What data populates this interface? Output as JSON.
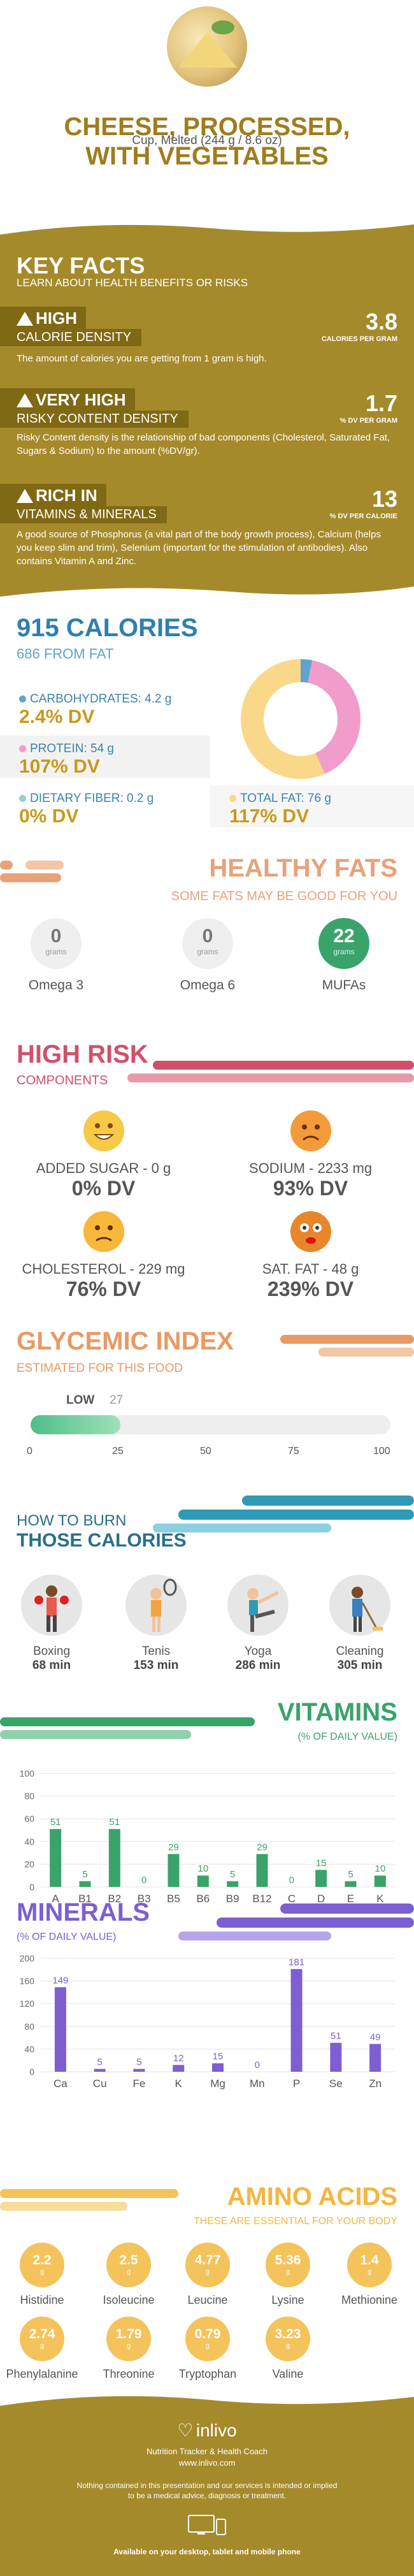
{
  "header": {
    "title_line1": "CHEESE, PROCESSED,",
    "title_line2": "WITH VEGETABLES",
    "serving": "Cup, Melted (244 g / 8.6 oz)"
  },
  "key_facts": {
    "title": "KEY FACTS",
    "subtitle": "LEARN ABOUT HEALTH BENEFITS OR RISKS",
    "calorie_density": {
      "level": "HIGH",
      "label": "CALORIE DENSITY",
      "value": "3.8",
      "unit": "CALORIES PER GRAM",
      "desc": "The amount of calories you are getting from 1 gram is high."
    },
    "risky_density": {
      "level": "VERY HIGH",
      "label": "RISKY CONTENT DENSITY",
      "value": "1.7",
      "unit": "% DV PER GRAM",
      "desc": "Risky Content density is the relationship of bad components (Cholesterol, Saturated Fat, Sugars & Sodium) to the amount (%DV/gr)."
    },
    "rich_in": {
      "level": "RICH IN",
      "label": "VITAMINS & MINERALS",
      "value": "13",
      "unit": "% DV PER CALORIE",
      "desc": "A good source of Phosphorus (a vital part of the body growth process), Calcium (helps you keep slim and trim), Selenium (important for the stimulation of antibodies). Also contains Vitamin A and Zinc."
    }
  },
  "calories": {
    "title": "915 CALORIES",
    "subtitle": "686 FROM FAT",
    "macros": [
      {
        "label": "CARBOHYDRATES: 4.2 g",
        "dv": "2.4% DV",
        "color": "#5ea4cd"
      },
      {
        "label": "PROTEIN: 54 g",
        "dv": "107% DV",
        "color": "#f29ccb"
      },
      {
        "label": "DIETARY FIBER: 0.2 g",
        "dv": "0% DV",
        "color": "#8fd3c6"
      },
      {
        "label": "TOTAL FAT: 76 g",
        "dv": "117% DV",
        "color": "#f9d88a"
      }
    ],
    "donut": [
      {
        "name": "Carbohydrates",
        "value": 4.2,
        "color": "#5ea4cd"
      },
      {
        "name": "Protein",
        "value": 54,
        "color": "#f29ccb"
      },
      {
        "name": "Fat",
        "value": 76,
        "color": "#f9d88a"
      }
    ]
  },
  "healthy_fats": {
    "title": "HEALTHY FATS",
    "subtitle": "SOME FATS MAY BE GOOD FOR YOU",
    "items": [
      {
        "name": "Omega 3",
        "value": "0",
        "unit": "grams"
      },
      {
        "name": "Omega 6",
        "value": "0",
        "unit": "grams"
      },
      {
        "name": "MUFAs",
        "value": "22",
        "unit": "grams"
      }
    ]
  },
  "high_risk": {
    "title": "HIGH RISK",
    "subtitle": "COMPONENTS",
    "items": [
      {
        "label": "ADDED SUGAR - 0 g",
        "dv": "0% DV",
        "face": "happy"
      },
      {
        "label": "SODIUM - 2233 mg",
        "dv": "93% DV",
        "face": "sad"
      },
      {
        "label": "CHOLESTEROL - 229 mg",
        "dv": "76% DV",
        "face": "sad"
      },
      {
        "label": "SAT. FAT - 48 g",
        "dv": "239% DV",
        "face": "dizzy"
      }
    ]
  },
  "glycemic": {
    "title": "GLYCEMIC INDEX",
    "subtitle": "ESTIMATED FOR THIS FOOD",
    "level": "LOW",
    "value": "27",
    "ticks": [
      "0",
      "25",
      "50",
      "75",
      "100"
    ],
    "fraction": 0.25
  },
  "burn": {
    "title_line1": "HOW TO BURN",
    "title_line2": "THOSE CALORIES",
    "items": [
      {
        "name": "Boxing",
        "minutes": "68 min"
      },
      {
        "name": "Tenis",
        "minutes": "153 min"
      },
      {
        "name": "Yoga",
        "minutes": "286 min"
      },
      {
        "name": "Cleaning",
        "minutes": "305 min"
      }
    ]
  },
  "vitamins_heading": {
    "title": "VITAMINS",
    "subtitle": "(% OF DAILY VALUE)"
  },
  "minerals_heading": {
    "title": "MINERALS",
    "subtitle": "(% OF DAILY VALUE)"
  },
  "chart_data": [
    {
      "type": "bar",
      "title": "VITAMINS",
      "ylabel": "(% OF DAILY VALUE)",
      "categories": [
        "A",
        "B1",
        "B2",
        "B3",
        "B5",
        "B6",
        "B9",
        "B12",
        "C",
        "D",
        "E",
        "K"
      ],
      "values": [
        51,
        5,
        51,
        0,
        29,
        10,
        5,
        29,
        0,
        15,
        5,
        10
      ],
      "yticks": [
        "0",
        "20",
        "40",
        "60",
        "80",
        "100"
      ],
      "ylim": [
        0,
        100
      ],
      "color": "#3aa36a"
    },
    {
      "type": "bar",
      "title": "MINERALS",
      "ylabel": "(% OF DAILY VALUE)",
      "categories": [
        "Ca",
        "Cu",
        "Fe",
        "K",
        "Mg",
        "Mn",
        "P",
        "Se",
        "Zn"
      ],
      "values": [
        149,
        5,
        5,
        12,
        15,
        0,
        181,
        51,
        49
      ],
      "yticks": [
        "0",
        "40",
        "80",
        "120",
        "160",
        "200"
      ],
      "ylim": [
        0,
        200
      ],
      "color": "#7d5fd1"
    }
  ],
  "amino": {
    "title": "AMINO ACIDS",
    "subtitle": "THESE ARE ESSENTIAL FOR YOUR BODY",
    "unit": "g",
    "items": [
      {
        "name": "Histidine",
        "value": "2.2"
      },
      {
        "name": "Isoleucine",
        "value": "2.5"
      },
      {
        "name": "Leucine",
        "value": "4.77"
      },
      {
        "name": "Lysine",
        "value": "5.36"
      },
      {
        "name": "Methionine",
        "value": "1.4"
      },
      {
        "name": "Phenylalanine",
        "value": "2.74"
      },
      {
        "name": "Threonine",
        "value": "1.79"
      },
      {
        "name": "Tryptophan",
        "value": "0.79"
      },
      {
        "name": "Valine",
        "value": "3.23"
      }
    ]
  },
  "footer": {
    "brand": "inlivo",
    "tagline": "Nutrition Tracker & Health Coach",
    "url": "www.inlivo.com",
    "disclaimer1": "Nothing contained in this presentation and our services is intended or implied",
    "disclaimer2": "to be a medical advice, diagnosis or treatment.",
    "available": "Available on your desktop, tablet and mobile phone"
  }
}
